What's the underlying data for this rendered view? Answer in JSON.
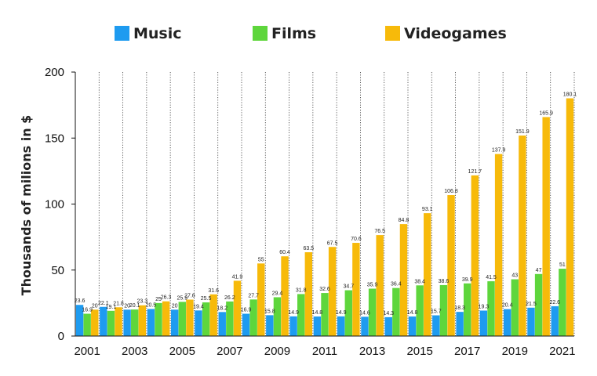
{
  "chart_data": {
    "type": "bar",
    "title": "",
    "xlabel": "",
    "ylabel": "Thousands of milions in $",
    "ylim": [
      0,
      200
    ],
    "yticks": [
      0,
      50,
      100,
      150,
      200
    ],
    "x_tick_labels": [
      "2001",
      "2003",
      "2005",
      "2007",
      "2009",
      "2011",
      "2013",
      "2015",
      "2017",
      "2019",
      "2021"
    ],
    "categories": [
      2001,
      2002,
      2003,
      2004,
      2005,
      2006,
      2007,
      2008,
      2009,
      2010,
      2011,
      2012,
      2013,
      2014,
      2015,
      2016,
      2017,
      2018,
      2019,
      2020,
      2021
    ],
    "legend_position": "top",
    "grid": "vertical dotted",
    "series": [
      {
        "name": "Music",
        "color": "#1E9BF0",
        "values": [
          23.6,
          22.1,
          20,
          20.5,
          20,
          19.4,
          18.2,
          16.9,
          15.8,
          14.9,
          14.8,
          14.9,
          14.6,
          14.3,
          14.8,
          15.7,
          18.3,
          19.3,
          20.4,
          21.5,
          22.6
        ],
        "labels": [
          "23.6",
          "22.1",
          "20",
          "20.5",
          "20",
          "19.4",
          "18.2",
          "16.9",
          "15.8",
          "14.9",
          "14.8",
          "14.9",
          "14.6",
          "14.3",
          "14.8",
          "15.7",
          "18.3",
          "19.3",
          "20.4",
          "21.5",
          "22.6"
        ]
      },
      {
        "name": "Films",
        "color": "#5ED63C",
        "values": [
          16.9,
          19.1,
          20.1,
          25,
          25.9,
          25.5,
          26.2,
          27.7,
          29.4,
          31.8,
          32.6,
          34.7,
          35.9,
          36.4,
          38.4,
          38.6,
          39.9,
          41.5,
          43,
          47,
          51
        ],
        "labels": [
          "16.9",
          "19.1",
          "20.1",
          "25",
          "25.9",
          "25.5",
          "26.2",
          "27.7",
          "29.4",
          "31.8",
          "32.6",
          "34.7",
          "35.9",
          "36.4",
          "38.4",
          "38.6",
          "39.9",
          "41.5",
          "43",
          "47",
          "51"
        ]
      },
      {
        "name": "Videogames",
        "color": "#F7BA0A",
        "values": [
          20,
          21.8,
          23.3,
          26.3,
          27.6,
          31.6,
          41.9,
          55,
          60.4,
          63.5,
          67.5,
          70.6,
          76.5,
          84.8,
          93.1,
          106.8,
          121.7,
          137.9,
          151.9,
          165.9,
          180.1
        ],
        "labels": [
          "20",
          "21.8",
          "23.3",
          "26.3",
          "27.6",
          "31.6",
          "41.9",
          "55",
          "60.4",
          "63.5",
          "67.5",
          "70.6",
          "76.5",
          "84.8",
          "93.1",
          "106.8",
          "121.7",
          "137.9",
          "151.9",
          "165.9",
          "180.1"
        ]
      }
    ]
  }
}
